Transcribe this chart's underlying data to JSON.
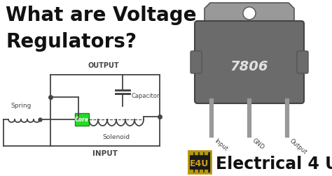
{
  "bg_color": "#ffffff",
  "title_line1": "What are Voltage",
  "title_line2": "Regulators?",
  "title_color": "#111111",
  "title_fontsize": 20,
  "title_weight": "bold",
  "circuit_color": "#444444",
  "output_label": "OUTPUT",
  "input_label": "INPUT",
  "capacitor_label": "Capacitor",
  "solenoid_label": "Solenoid",
  "spring_label": "Spring",
  "core_label": "Core",
  "core_color": "#22dd22",
  "ic_body_color": "#6b6b6b",
  "ic_tab_color": "#999999",
  "ic_text": "7806",
  "ic_text_color": "#e0e0e0",
  "pin_color": "#999999",
  "pin_labels": [
    "Input",
    "GND",
    "Output"
  ],
  "brand_bg": "#1a1a1a",
  "brand_border": "#b8960c",
  "brand_text": "E4U",
  "brand_text_color": "#c8a020",
  "brand_label": "Electrical 4 U",
  "brand_label_color": "#111111",
  "brand_label_fontsize": 17,
  "brand_label_weight": "bold"
}
